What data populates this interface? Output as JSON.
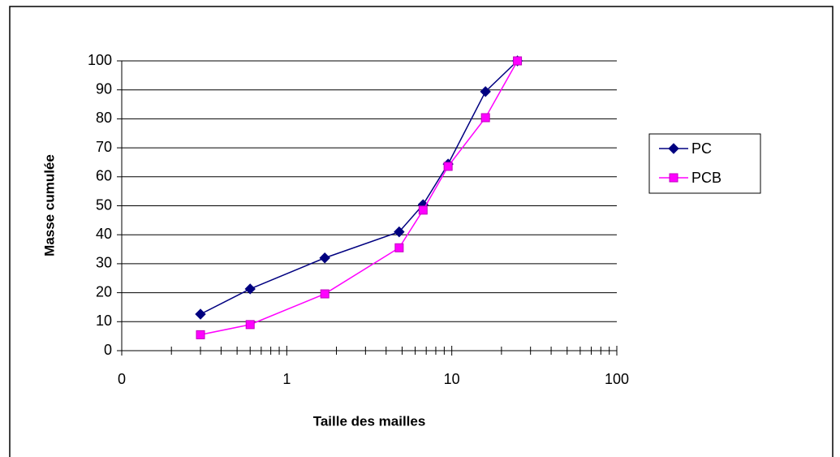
{
  "chart_data": {
    "type": "line",
    "log_x": true,
    "grid": true,
    "legend": "right",
    "xlabel": "Taille des mailles",
    "ylabel": "Masse cumulée",
    "xlim": [
      0.1,
      100
    ],
    "xticks": [
      {
        "value": 0.1,
        "label": "0"
      },
      1,
      10,
      100
    ],
    "ylim": [
      0,
      100
    ],
    "yticks": [
      0,
      10,
      20,
      30,
      40,
      50,
      60,
      70,
      80,
      90,
      100
    ],
    "x": [
      0.3,
      0.6,
      1.7,
      4.8,
      6.7,
      9.5,
      16,
      25
    ],
    "series": [
      {
        "name": "PC",
        "color": "#000080",
        "marker": "diamond",
        "values": [
          12.6,
          21.3,
          32,
          41,
          50.4,
          64.4,
          89.4,
          100
        ]
      },
      {
        "name": "PCB",
        "color": "#ff00ff",
        "marker": "square",
        "values": [
          5.5,
          9,
          19.6,
          35.5,
          48.5,
          63.6,
          80.4,
          100
        ]
      }
    ]
  }
}
